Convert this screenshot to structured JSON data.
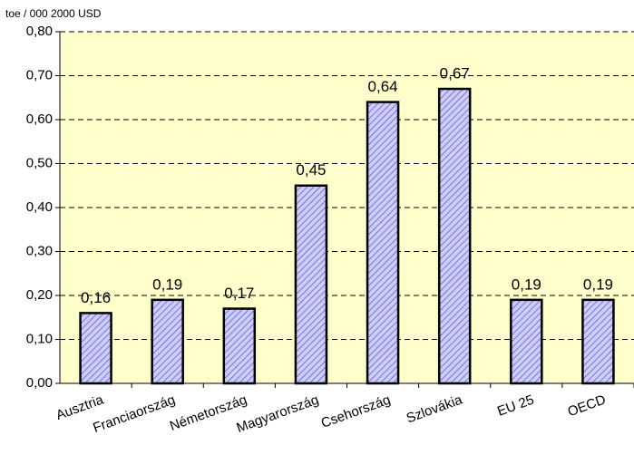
{
  "chart_data": {
    "type": "bar",
    "y_label": "toe / 000 2000 USD",
    "categories": [
      "Ausztria",
      "Franciaország",
      "Németország",
      "Magyarország",
      "Csehország",
      "Szlovákia",
      "EU 25",
      "OECD"
    ],
    "values": [
      0.16,
      0.19,
      0.17,
      0.45,
      0.64,
      0.67,
      0.19,
      0.19
    ],
    "value_labels": [
      "0,16",
      "0,19",
      "0,17",
      "0,45",
      "0,64",
      "0,67",
      "0,19",
      "0,19"
    ],
    "color": "#ccccff",
    "ylim": [
      0,
      0.8
    ],
    "yticks": [
      {
        "value": 0,
        "label": "0,00"
      },
      {
        "value": 0.1,
        "label": "0,10"
      },
      {
        "value": 0.2,
        "label": "0,20"
      },
      {
        "value": 0.3,
        "label": "0,30"
      },
      {
        "value": 0.4,
        "label": "0,40"
      },
      {
        "value": 0.5,
        "label": "0,50"
      },
      {
        "value": 0.6,
        "label": "0,60"
      },
      {
        "value": 0.7,
        "label": "0,70"
      },
      {
        "value": 0.8,
        "label": "0,80"
      }
    ],
    "grid": true
  }
}
